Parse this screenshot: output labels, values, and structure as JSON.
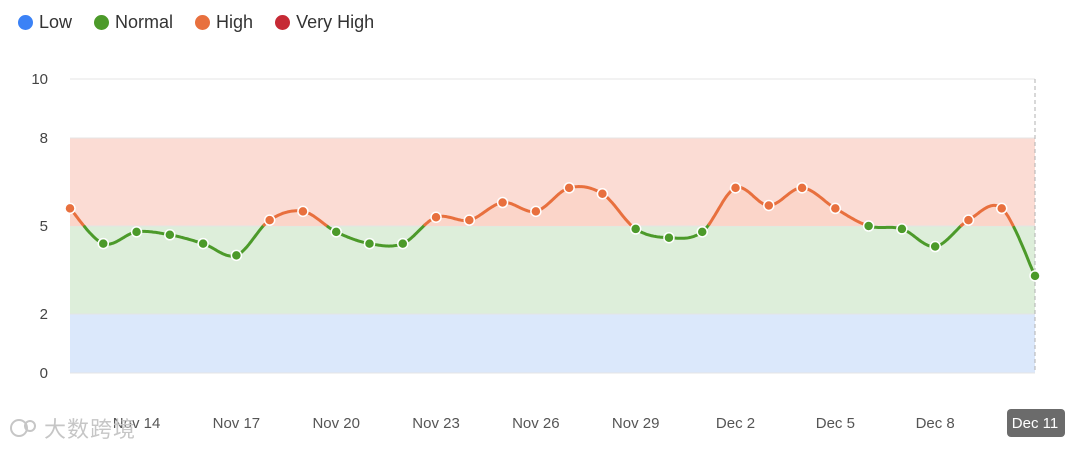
{
  "legend": [
    {
      "label": "Low",
      "color": "#3b82f6"
    },
    {
      "label": "Normal",
      "color": "#4c9a2a"
    },
    {
      "label": "High",
      "color": "#e8703e"
    },
    {
      "label": "Very High",
      "color": "#c62a35"
    }
  ],
  "watermark": "大数跨境",
  "chart_data": {
    "type": "line",
    "y_ticks": [
      0,
      2,
      5,
      8,
      10
    ],
    "x_tick_labels": [
      "Nov 14",
      "Nov 17",
      "Nov 20",
      "Nov 23",
      "Nov 26",
      "Nov 29",
      "Dec 2",
      "Dec 5",
      "Dec 8",
      "Dec 11"
    ],
    "highlighted_x_label": "Dec 11",
    "x": [
      "Nov 12",
      "Nov 13",
      "Nov 14",
      "Nov 15",
      "Nov 16",
      "Nov 17",
      "Nov 18",
      "Nov 19",
      "Nov 20",
      "Nov 21",
      "Nov 22",
      "Nov 23",
      "Nov 24",
      "Nov 25",
      "Nov 26",
      "Nov 27",
      "Nov 28",
      "Nov 29",
      "Nov 30",
      "Dec 1",
      "Dec 2",
      "Dec 3",
      "Dec 4",
      "Dec 5",
      "Dec 6",
      "Dec 7",
      "Dec 8",
      "Dec 9",
      "Dec 10",
      "Dec 11"
    ],
    "values": [
      5.6,
      4.4,
      4.8,
      4.7,
      4.4,
      4.0,
      5.2,
      5.5,
      4.8,
      4.4,
      4.4,
      5.3,
      5.2,
      5.8,
      5.5,
      6.3,
      6.1,
      4.9,
      4.6,
      4.8,
      6.3,
      5.7,
      6.3,
      5.6,
      5.0,
      4.9,
      4.3,
      5.2,
      5.6,
      3.3
    ],
    "bands": [
      {
        "name": "Low",
        "from": 0,
        "to": 2,
        "color": "#dbe8fb"
      },
      {
        "name": "Normal",
        "from": 2,
        "to": 5,
        "color": "#ddeeda"
      },
      {
        "name": "High",
        "from": 5,
        "to": 8,
        "color": "#fbdcd4"
      }
    ],
    "colors": {
      "normal": "#4c9a2a",
      "high": "#e8703e"
    },
    "ylim": [
      0,
      10
    ],
    "grid": true
  }
}
